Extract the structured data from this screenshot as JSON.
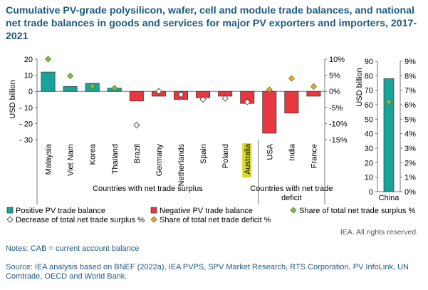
{
  "title": "Cumulative PV-grade polysilicon, wafer, cell and module trade balances, and national net trade balances in goods and services for major PV exporters and importers, 2017-2021",
  "colors": {
    "positive": "#1aa39a",
    "negative": "#e8373e",
    "share_surplus": "#7dc242",
    "share_deficit": "#f5a623",
    "highlight_label": "#d8d82a",
    "title": "#1e5b82"
  },
  "chart_data": [
    {
      "type": "bar",
      "panel": "main",
      "ylabel": "USD billion",
      "ylim": [
        -30,
        20
      ],
      "yticks": [
        "20",
        "10",
        "0",
        "- 10",
        "- 20",
        "- 30"
      ],
      "y2lim": [
        -15,
        10
      ],
      "y2ticks": [
        "10%",
        "5%",
        "0%",
        "-5%",
        "-10%",
        "-15%"
      ],
      "categories": [
        "Malaysia",
        "Viet Nam",
        "Korea",
        "Thailand",
        "Brazil",
        "Germany",
        "Netherlands",
        "Spain",
        "Poland",
        "Australia",
        "USA",
        "India",
        "France"
      ],
      "highlight_category": "Australia",
      "groups": [
        {
          "label": "Countries with net trade surplus",
          "count": 10
        },
        {
          "label": "Countries with net trade deficit",
          "count": 3
        }
      ],
      "series": [
        {
          "name": "Positive PV trade balance",
          "values": [
            12.0,
            3.0,
            5.0,
            2.0,
            null,
            null,
            null,
            null,
            null,
            null,
            null,
            null,
            null
          ]
        },
        {
          "name": "Negative PV trade balance",
          "values": [
            null,
            null,
            null,
            null,
            -6.0,
            -3.0,
            -5.0,
            -4.0,
            -3.0,
            -7.5,
            -26.0,
            -13.5,
            -3.0
          ]
        },
        {
          "name": "Share of total net trade surplus %",
          "axis": "secondary",
          "values": [
            10.0,
            4.8,
            1.6,
            1.0,
            null,
            null,
            null,
            null,
            null,
            null,
            null,
            null,
            null
          ]
        },
        {
          "name": "Decrease of total net trade surplus %",
          "axis": "secondary",
          "values": [
            null,
            null,
            null,
            null,
            -10.5,
            0.0,
            -1.0,
            -2.5,
            -2.2,
            -3.3,
            null,
            null,
            null
          ]
        },
        {
          "name": "Share of total net trade deficit %",
          "axis": "secondary",
          "values": [
            null,
            null,
            null,
            null,
            null,
            null,
            null,
            null,
            null,
            null,
            0.5,
            4.0,
            1.5
          ]
        }
      ]
    },
    {
      "type": "bar",
      "panel": "china",
      "ylabel": "USD billion",
      "ylim": [
        0,
        90
      ],
      "yticks": [
        "90",
        "80",
        "70",
        "60",
        "50",
        "40",
        "30",
        "20",
        "10",
        "0"
      ],
      "y2lim": [
        0,
        9
      ],
      "y2ticks": [
        "9%",
        "8%",
        "7%",
        "6%",
        "5%",
        "4%",
        "3%",
        "2%",
        "1%",
        "0%"
      ],
      "categories": [
        "China"
      ],
      "series": [
        {
          "name": "Positive PV trade balance",
          "values": [
            78.0
          ]
        },
        {
          "name": "Share of total net trade surplus %",
          "axis": "secondary",
          "values": [
            6.2
          ]
        }
      ]
    }
  ],
  "legend": [
    {
      "label": "Positive PV trade balance",
      "marker": "square",
      "color": "#1aa39a"
    },
    {
      "label": "Negative PV trade balance",
      "marker": "square",
      "color": "#e8373e"
    },
    {
      "label": "Share of total net trade surplus %",
      "marker": "diamond",
      "color": "#7dc242"
    },
    {
      "label": "Decrease of total net trade surplus %",
      "marker": "diamond",
      "color": "#ffffff"
    },
    {
      "label": "Share of total net trade deficit %",
      "marker": "diamond",
      "color": "#f5a623"
    }
  ],
  "rights": "IEA. All rights reserved.",
  "note": "Notes: CAB = current account balance",
  "source": "Source: IEA analysis based on BNEF (2022a), IEA PVPS, SPV Market Research, RTS Corporation, PV InfoLink, UN Comtrade, OECD and World Bank."
}
